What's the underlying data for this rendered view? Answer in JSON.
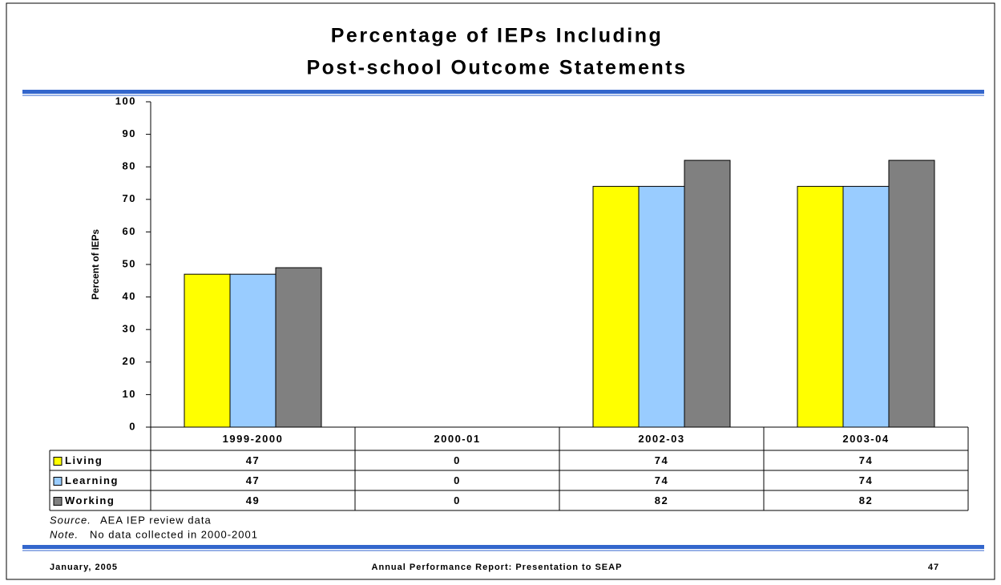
{
  "chart_data": {
    "type": "bar",
    "title": [
      "Percentage of IEPs Including",
      "Post-school Outcome Statements"
    ],
    "y_label": "Percent of IEPs",
    "categories": [
      "1999-2000",
      "2000-01",
      "2002-03",
      "2003-04"
    ],
    "series": [
      {
        "name": "Living",
        "color": "#ffff00",
        "values": [
          47,
          0,
          74,
          74
        ]
      },
      {
        "name": "Learning",
        "color": "#99ccff",
        "values": [
          47,
          0,
          74,
          74
        ]
      },
      {
        "name": "Working",
        "color": "#808080",
        "values": [
          49,
          0,
          82,
          82
        ]
      }
    ],
    "ylim": [
      0,
      100
    ],
    "yticks": [
      0,
      10,
      20,
      30,
      40,
      50,
      60,
      70,
      80,
      90,
      100
    ]
  },
  "notes": [
    {
      "label": "Source.",
      "text": "AEA IEP review data"
    },
    {
      "label": "Note.",
      "text": "No data collected in 2000-2001"
    }
  ],
  "footer": {
    "date": "January, 2005",
    "center": "Annual Performance Report: Presentation to SEAP",
    "page": "47"
  }
}
